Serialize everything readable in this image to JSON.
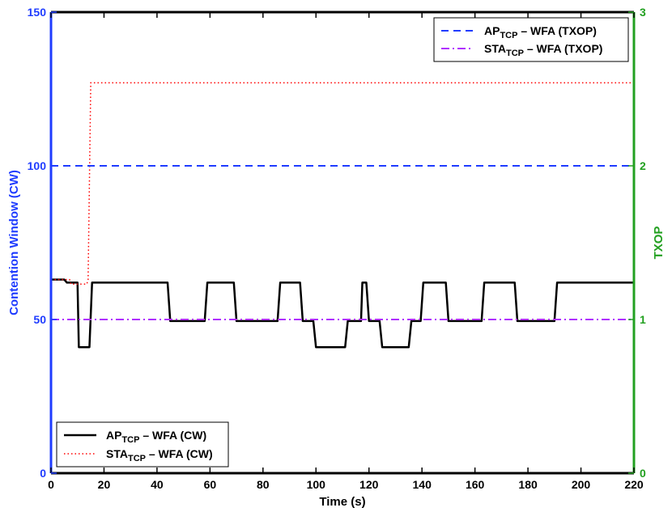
{
  "chart_data": {
    "type": "line",
    "xlabel": "Time (s)",
    "ylabel_left": "Contention Window (CW)",
    "ylabel_right": "TXOP",
    "xlim": [
      0,
      220
    ],
    "ylim_left": [
      0,
      150
    ],
    "ylim_right": [
      0,
      3
    ],
    "xticks": [
      "0",
      "20",
      "40",
      "60",
      "80",
      "100",
      "120",
      "140",
      "160",
      "180",
      "200",
      "220"
    ],
    "yticks_left": [
      "0",
      "50",
      "100",
      "150"
    ],
    "yticks_right": [
      "0",
      "1",
      "2",
      "3"
    ],
    "grid": false,
    "colors": {
      "left_axis": "#1f3cff",
      "right_axis": "#22a020",
      "ap_cw": "#000000",
      "sta_cw": "#ff0000",
      "ap_txop": "#1f3cff",
      "sta_txop": "#b030ff"
    },
    "legends": {
      "top_right": {
        "placement": "top-right",
        "entries": [
          {
            "base": "AP",
            "sub": "TCP",
            "rest": " – WFA (TXOP)"
          },
          {
            "base": "STA",
            "sub": "TCP",
            "rest": " – WFA (TXOP)"
          }
        ]
      },
      "bottom_left": {
        "placement": "bottom-left",
        "entries": [
          {
            "base": "AP",
            "sub": "TCP",
            "rest": " – WFA (CW)"
          },
          {
            "base": "STA",
            "sub": "TCP",
            "rest": " – WFA (CW)"
          }
        ]
      }
    },
    "series": [
      {
        "name": "AP_TCP – WFA (CW)",
        "axis": "left",
        "style": "solid",
        "points": [
          [
            0,
            63
          ],
          [
            5,
            63
          ],
          [
            6,
            62
          ],
          [
            9,
            62
          ],
          [
            10,
            62
          ],
          [
            10.5,
            41
          ],
          [
            14.5,
            41
          ],
          [
            15.5,
            62
          ],
          [
            44,
            62
          ],
          [
            45,
            49.5
          ],
          [
            58,
            49.5
          ],
          [
            59,
            62
          ],
          [
            69,
            62
          ],
          [
            70,
            49.5
          ],
          [
            85.5,
            49.5
          ],
          [
            86.5,
            62
          ],
          [
            94,
            62
          ],
          [
            95,
            49.5
          ],
          [
            99,
            49.5
          ],
          [
            100,
            41
          ],
          [
            111,
            41
          ],
          [
            112,
            49.5
          ],
          [
            117,
            49.5
          ],
          [
            117.5,
            62
          ],
          [
            119,
            62
          ],
          [
            120,
            49.5
          ],
          [
            124,
            49.5
          ],
          [
            125,
            41
          ],
          [
            135,
            41
          ],
          [
            136,
            49.5
          ],
          [
            139.5,
            49.5
          ],
          [
            140.5,
            62
          ],
          [
            149,
            62
          ],
          [
            150,
            49.5
          ],
          [
            162.5,
            49.5
          ],
          [
            163.5,
            62
          ],
          [
            172,
            62
          ],
          [
            175,
            62
          ],
          [
            176,
            49.5
          ],
          [
            190,
            49.5
          ],
          [
            191,
            62
          ],
          [
            220,
            62
          ]
        ]
      },
      {
        "name": "STA_TCP – WFA (CW)",
        "axis": "left",
        "style": "dotted",
        "points": [
          [
            0,
            63
          ],
          [
            7,
            63
          ],
          [
            7.5,
            61.5
          ],
          [
            13.5,
            61.5
          ],
          [
            14,
            63
          ],
          [
            15,
            127
          ],
          [
            220,
            127
          ]
        ]
      },
      {
        "name": "AP_TCP – WFA (TXOP)",
        "axis": "right",
        "style": "dashed",
        "points": [
          [
            0,
            2
          ],
          [
            220,
            2
          ]
        ]
      },
      {
        "name": "STA_TCP – WFA (TXOP)",
        "axis": "right",
        "style": "dashdot",
        "points": [
          [
            0,
            1
          ],
          [
            220,
            1
          ]
        ]
      }
    ]
  }
}
